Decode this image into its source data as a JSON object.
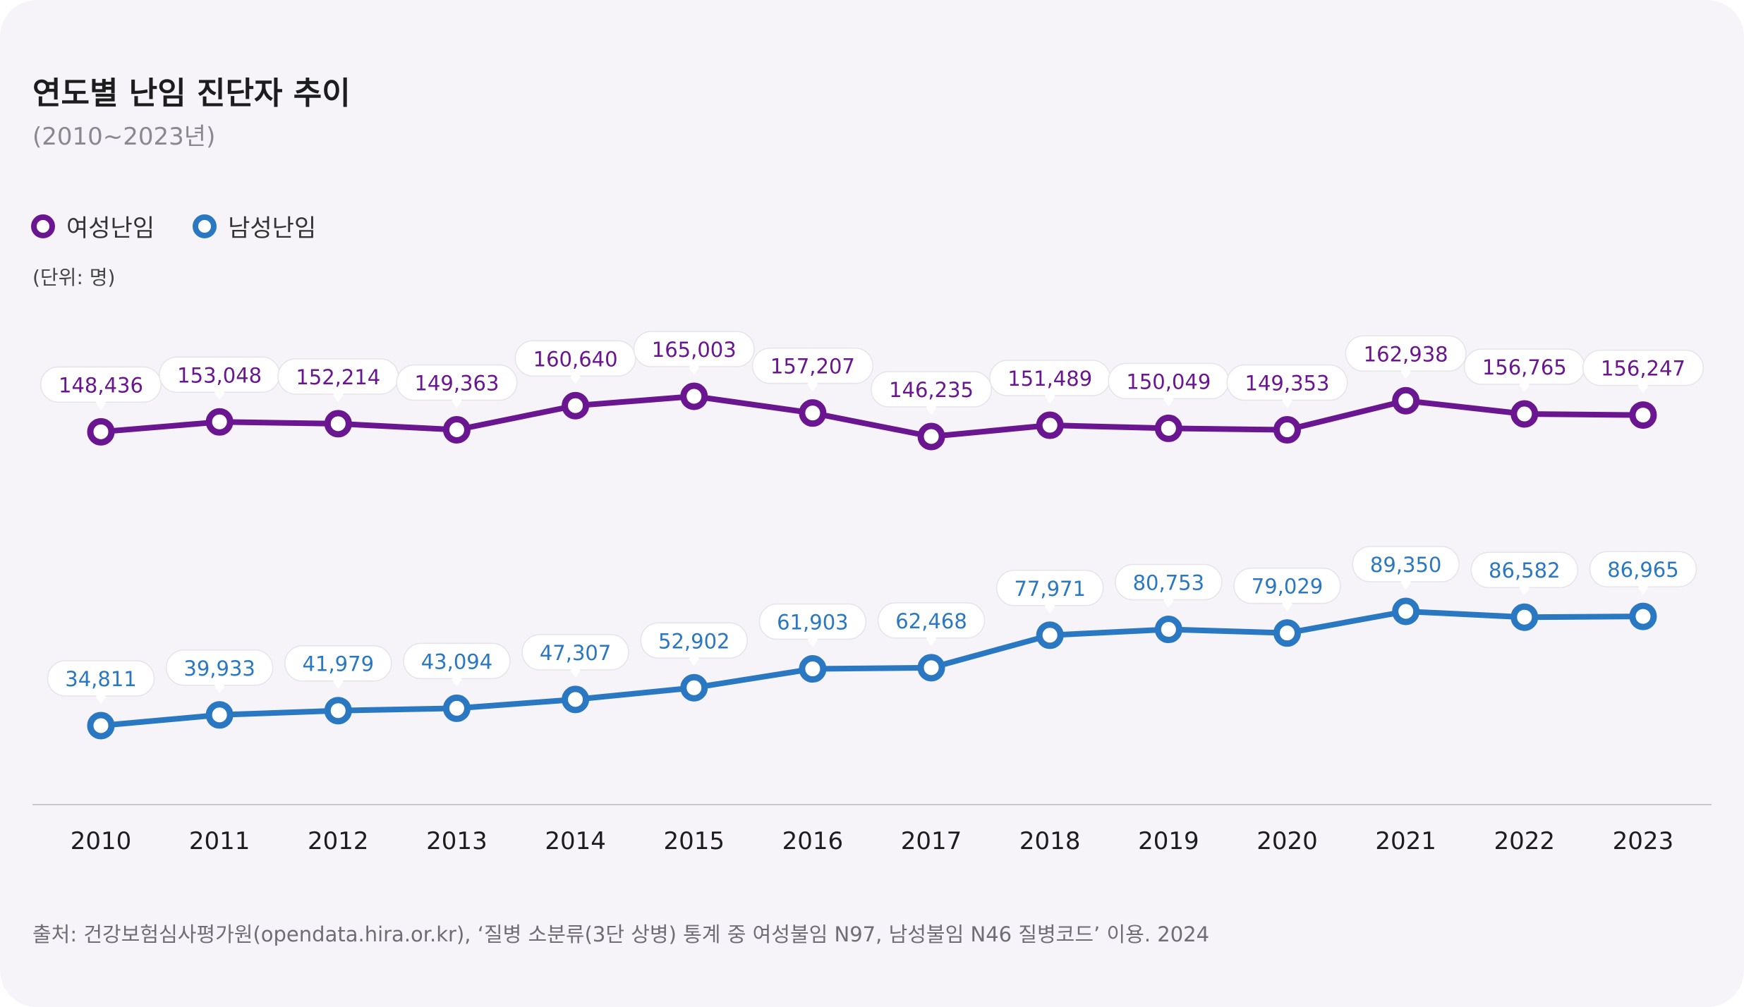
{
  "title": "연도별 난임 진단자 추이",
  "subtitle": "(2010~2023년)",
  "unit_label": "(단위: 명)",
  "source": "출처: 건강보험심사평가원(opendata.hira.or.kr), ‘질병 소분류(3단 상병) 통계 중 여성불임 N97, 남성불임 N46 질병코드’ 이용. 2024",
  "colors": {
    "female": "#6a1690",
    "male": "#2b78c2",
    "axis": "#c9c7cc",
    "card": "#f6f4f8"
  },
  "chart_data": {
    "type": "line",
    "x": [
      "2010",
      "2011",
      "2012",
      "2013",
      "2014",
      "2015",
      "2016",
      "2017",
      "2018",
      "2019",
      "2020",
      "2021",
      "2022",
      "2023"
    ],
    "legend_position": "top-left",
    "grid": false,
    "series": [
      {
        "name": "여성난임",
        "color": "#6a1690",
        "values": [
          148436,
          153048,
          152214,
          149363,
          160640,
          165003,
          157207,
          146235,
          151489,
          150049,
          149353,
          162938,
          156765,
          156247
        ],
        "labels": [
          "148,436",
          "153,048",
          "152,214",
          "149,363",
          "160,640",
          "165,003",
          "157,207",
          "146,235",
          "151,489",
          "150,049",
          "149,353",
          "162,938",
          "156,765",
          "156,247"
        ]
      },
      {
        "name": "남성난임",
        "color": "#2b78c2",
        "values": [
          34811,
          39933,
          41979,
          43094,
          47307,
          52902,
          61903,
          62468,
          77971,
          80753,
          79029,
          89350,
          86582,
          86965
        ],
        "labels": [
          "34,811",
          "39,933",
          "41,979",
          "43,094",
          "47,307",
          "52,902",
          "61,903",
          "62,468",
          "77,971",
          "80,753",
          "79,029",
          "89,350",
          "86,582",
          "86,965"
        ]
      }
    ]
  }
}
